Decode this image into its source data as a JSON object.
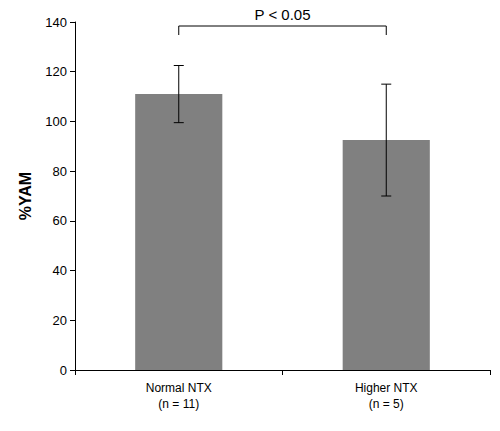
{
  "chart_data": {
    "type": "bar",
    "categories": [
      "Normal NTX\n(n = 11)",
      "Higher NTX\n(n = 5)"
    ],
    "values": [
      111,
      92.5
    ],
    "errors": [
      11.5,
      22.5
    ],
    "color": "#808080",
    "y_label": "%YAM",
    "annotation": "P < 0.05",
    "ylim": [
      0,
      140
    ],
    "yticks": [
      0,
      20,
      40,
      60,
      80,
      100,
      120,
      140
    ],
    "grid": false
  }
}
